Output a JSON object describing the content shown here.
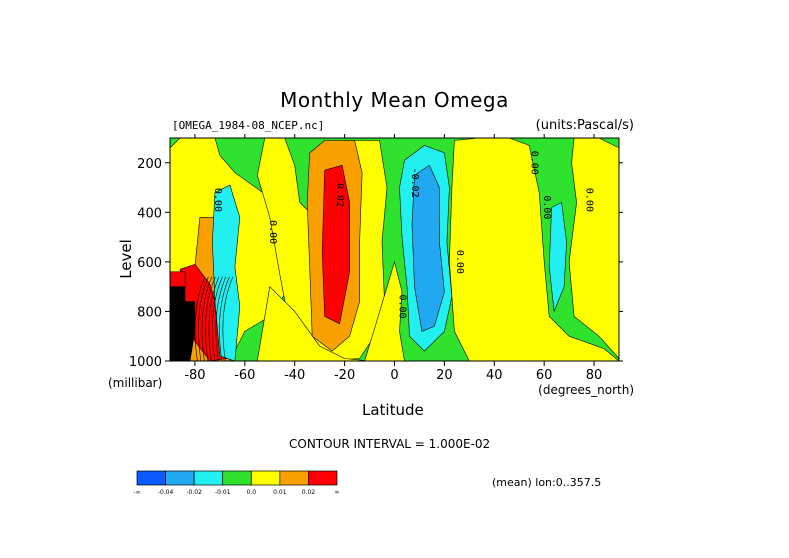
{
  "header": {
    "title": "Monthly Mean Omega",
    "dataset": "[OMEGA_1984-08_NCEP.nc]",
    "units": "(units:Pascal/s)"
  },
  "footer": {
    "contour_interval": "CONTOUR INTERVAL = 1.000E-02",
    "mean_lon": "(mean) lon:0..357.5"
  },
  "colors": {
    "lt_neg04": "#0a5cff",
    "neg04_neg02": "#20a8f0",
    "neg02_neg01": "#22f0f0",
    "neg01_0": "#2ee22e",
    "0_001": "#ffff00",
    "001_002": "#f7a000",
    "gt_002": "#ff0000",
    "missing": "#000000"
  },
  "chart_data": {
    "type": "heatmap",
    "title": "Monthly Mean Omega",
    "xlabel": "Latitude",
    "x_unit_label": "(degrees_north)",
    "ylabel": "Level",
    "y_unit_label": "(millibar)",
    "xlim": [
      -90,
      90
    ],
    "ylim": [
      1000,
      100
    ],
    "x_ticks": [
      -80,
      -60,
      -40,
      -20,
      0,
      20,
      40,
      60,
      80
    ],
    "x_tick_labels": [
      "-80",
      "-60",
      "-40",
      "-20",
      "0",
      "20",
      "40",
      "60",
      "80"
    ],
    "y_ticks": [
      200,
      400,
      600,
      800,
      1000
    ],
    "y_tick_labels": [
      "200",
      "400",
      "600",
      "800",
      "1000"
    ],
    "contour_interval": 0.01,
    "colorbar": {
      "levels": [
        -0.04,
        -0.02,
        -0.01,
        0.0,
        0.01,
        0.02
      ],
      "labels": [
        "-∞",
        "-0.04",
        "-0.02",
        "-0.01",
        "0.0",
        "0.01",
        "0.02",
        "∞"
      ],
      "colors": [
        "#0a5cff",
        "#20a8f0",
        "#22f0f0",
        "#2ee22e",
        "#ffff00",
        "#f7a000",
        "#ff0000"
      ]
    },
    "regions": [
      {
        "name": "sh-descent-core",
        "range": "> 0.02",
        "lat": [
          -30,
          -17
        ],
        "level": [
          220,
          850
        ]
      },
      {
        "name": "sh-descent",
        "range": "0.01 to 0.02",
        "lat": [
          -35,
          -10
        ],
        "level": [
          120,
          950
        ]
      },
      {
        "name": "polar-descent",
        "range": "> 0.02",
        "lat": [
          -85,
          -70
        ],
        "level": [
          600,
          1000
        ]
      },
      {
        "name": "itcz-ascent-core",
        "range": "-0.04 to -0.02",
        "lat": [
          4,
          20
        ],
        "level": [
          200,
          900
        ]
      },
      {
        "name": "itcz-ascent",
        "range": "-0.02 to -0.01",
        "lat": [
          2,
          24
        ],
        "level": [
          110,
          990
        ]
      },
      {
        "name": "midlat-ascent-sh",
        "range": "-0.02 to -0.01",
        "lat": [
          -72,
          -62
        ],
        "level": [
          300,
          1000
        ]
      },
      {
        "name": "midlat-ascent-nh",
        "range": "-0.02 to -0.01",
        "lat": [
          62,
          68
        ],
        "level": [
          350,
          850
        ]
      },
      {
        "name": "missing-topography",
        "range": "missing",
        "lat": [
          -90,
          -80
        ],
        "level": [
          700,
          1000
        ]
      }
    ],
    "contour_labels": [
      {
        "text": "0.00",
        "lat": -72,
        "level": 350
      },
      {
        "text": "0.00",
        "lat": -50,
        "level": 480
      },
      {
        "text": "0.02",
        "lat": -23,
        "level": 330
      },
      {
        "text": "-0.02",
        "lat": 7,
        "level": 280
      },
      {
        "text": "0.00",
        "lat": 25,
        "level": 600
      },
      {
        "text": "0.00",
        "lat": 2,
        "level": 780
      },
      {
        "text": "0.00",
        "lat": 55,
        "level": 200
      },
      {
        "text": "0.00",
        "lat": 60,
        "level": 380
      },
      {
        "text": "0.00",
        "lat": 77,
        "level": 350
      }
    ]
  }
}
